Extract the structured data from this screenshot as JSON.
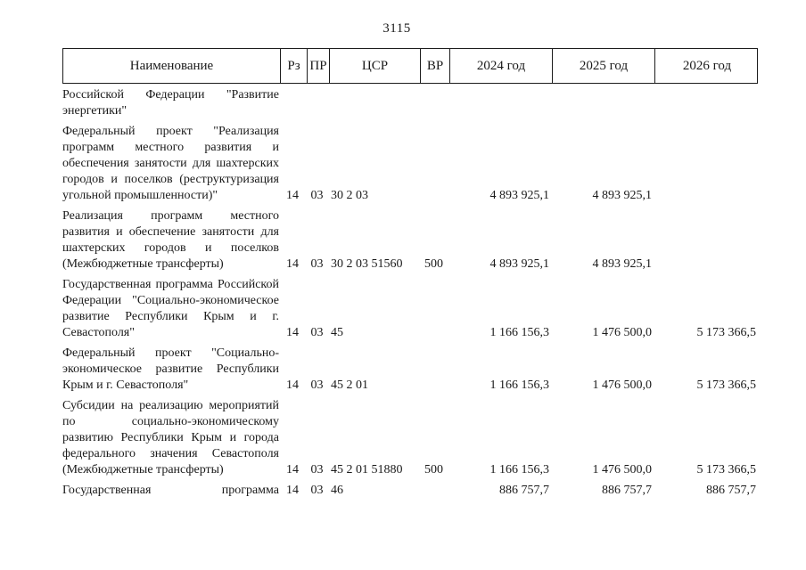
{
  "page": {
    "number": "3115"
  },
  "table": {
    "headers": [
      "Наименование",
      "Рз",
      "ПР",
      "ЦСР",
      "ВР",
      "2024 год",
      "2025 год",
      "2026 год"
    ],
    "rows": [
      {
        "name": "Российской Федерации \"Развитие энергетики\"",
        "rz": "",
        "pr": "",
        "csr": "",
        "vr": "",
        "y2024": "",
        "y2025": "",
        "y2026": ""
      },
      {
        "name": "Федеральный проект \"Реализация программ местного развития и обеспечения занятости для шахтерских городов и поселков (реструктуризация угольной промышленности)\"",
        "rz": "14",
        "pr": "03",
        "csr": "30 2 03",
        "vr": "",
        "y2024": "4 893 925,1",
        "y2025": "4 893 925,1",
        "y2026": ""
      },
      {
        "name": "Реализация программ местного развития и обеспечение занятости для шахтерских городов и поселков (Межбюджетные трансферты)",
        "rz": "14",
        "pr": "03",
        "csr": "30 2 03 51560",
        "vr": "500",
        "y2024": "4 893 925,1",
        "y2025": "4 893 925,1",
        "y2026": ""
      },
      {
        "name": "Государственная программа Российской Федерации \"Социально-экономическое развитие Республики Крым и г. Севастополя\"",
        "rz": "14",
        "pr": "03",
        "csr": "45",
        "vr": "",
        "y2024": "1 166 156,3",
        "y2025": "1 476 500,0",
        "y2026": "5 173 366,5"
      },
      {
        "name": "Федеральный проект \"Социально-экономическое развитие Республики Крым и г. Севастополя\"",
        "rz": "14",
        "pr": "03",
        "csr": "45 2 01",
        "vr": "",
        "y2024": "1 166 156,3",
        "y2025": "1 476 500,0",
        "y2026": "5 173 366,5"
      },
      {
        "name": "Субсидии на реализацию мероприятий по социально-экономическому развитию Республики Крым и города федерального значения Севастополя (Межбюджетные трансферты)",
        "rz": "14",
        "pr": "03",
        "csr": "45 2 01 51880",
        "vr": "500",
        "y2024": "1 166 156,3",
        "y2025": "1 476 500,0",
        "y2026": "5 173 366,5"
      },
      {
        "name": "Государственная программа",
        "justify_last": true,
        "rz": "14",
        "pr": "03",
        "csr": "46",
        "vr": "",
        "y2024": "886 757,7",
        "y2025": "886 757,7",
        "y2026": "886 757,7"
      }
    ]
  }
}
